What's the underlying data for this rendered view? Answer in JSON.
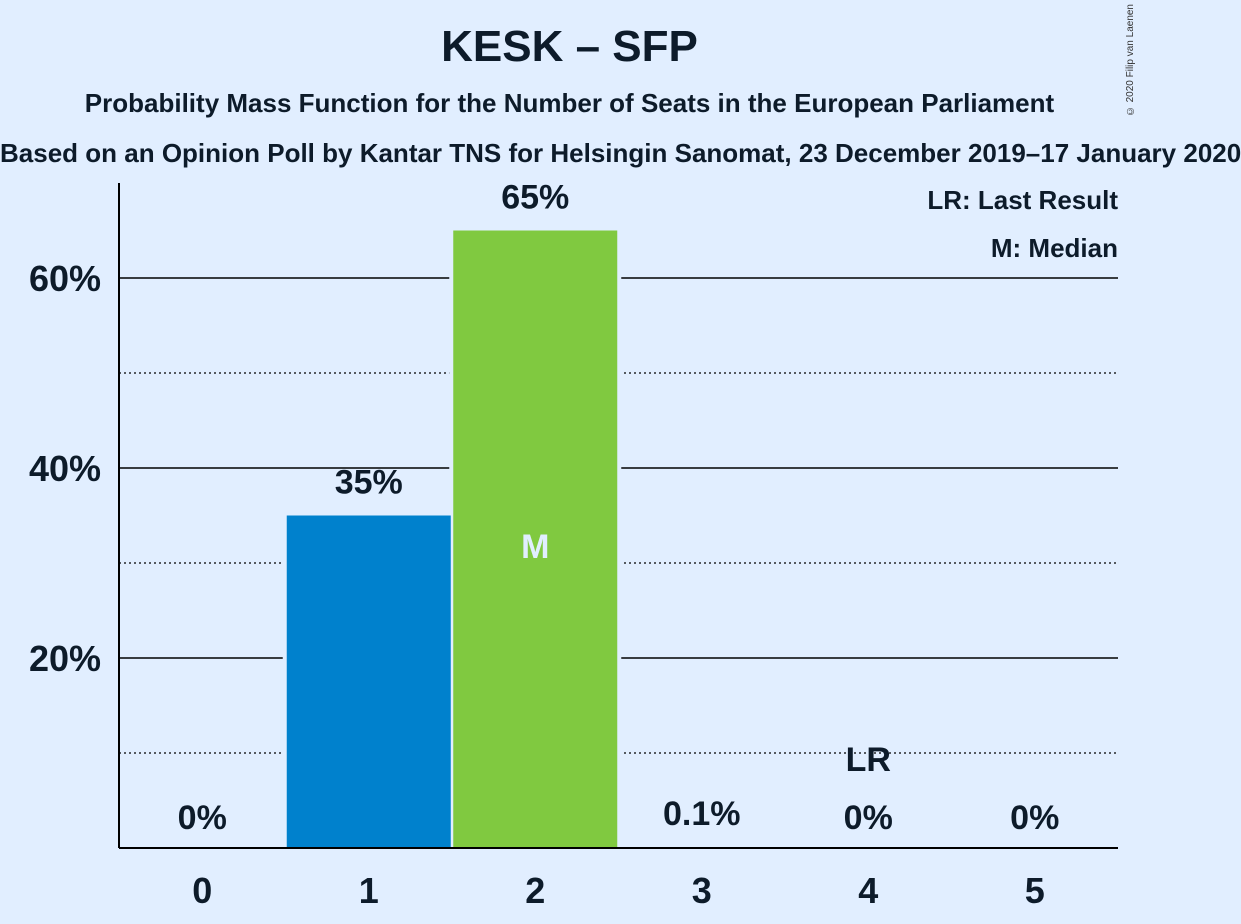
{
  "title": "KESK – SFP",
  "subtitle": "Probability Mass Function for the Number of Seats in the European Parliament",
  "source": "Based on an Opinion Poll by Kantar TNS for Helsingin Sanomat, 23 December 2019–17 January 2020",
  "copyright": "© 2020 Filip van Laenen",
  "legend": {
    "last_result": "LR: Last Result",
    "median": "M: Median"
  },
  "colors": {
    "background": "#e1eeff",
    "bar_blue": "#0081cd",
    "bar_green": "#80c940",
    "text": "#0d1b2a"
  },
  "chart_data": {
    "type": "bar",
    "categories": [
      "0",
      "1",
      "2",
      "3",
      "4",
      "5"
    ],
    "values": [
      0,
      35,
      65,
      0.1,
      0,
      0
    ],
    "value_labels": [
      "0%",
      "35%",
      "65%",
      "0.1%",
      "0%",
      "0%"
    ],
    "bar_colors": [
      "#0081cd",
      "#0081cd",
      "#80c940",
      "#80c940",
      "#80c940",
      "#80c940"
    ],
    "ylim": [
      0,
      70
    ],
    "yticks": [
      20,
      40,
      60
    ],
    "ytick_labels": [
      "20%",
      "40%",
      "60%"
    ],
    "minor_gridlines": [
      10,
      30,
      50
    ],
    "median_category": "2",
    "median_label": "M",
    "last_result_category": "4",
    "last_result_label": "LR"
  }
}
